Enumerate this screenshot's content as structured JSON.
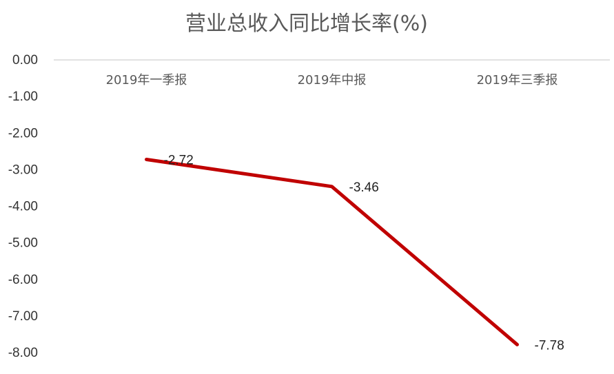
{
  "chart_data": {
    "type": "line",
    "title": "营业总收入同比增长率(%)",
    "categories": [
      "2019年一季报",
      "2019年中报",
      "2019年三季报"
    ],
    "series": [
      {
        "values": [
          -2.72,
          -3.46,
          -7.78
        ],
        "color": "#C00000"
      }
    ],
    "y_ticks": [
      "0.00",
      "-1.00",
      "-2.00",
      "-3.00",
      "-4.00",
      "-5.00",
      "-6.00",
      "-7.00",
      "-8.00"
    ],
    "data_labels": [
      "-2.72",
      "-3.46",
      "-7.78"
    ],
    "ylim": [
      -8,
      0
    ],
    "category_axis_position": "top",
    "axis_color": "#D9D9D9",
    "grid": false,
    "legend": "none"
  }
}
